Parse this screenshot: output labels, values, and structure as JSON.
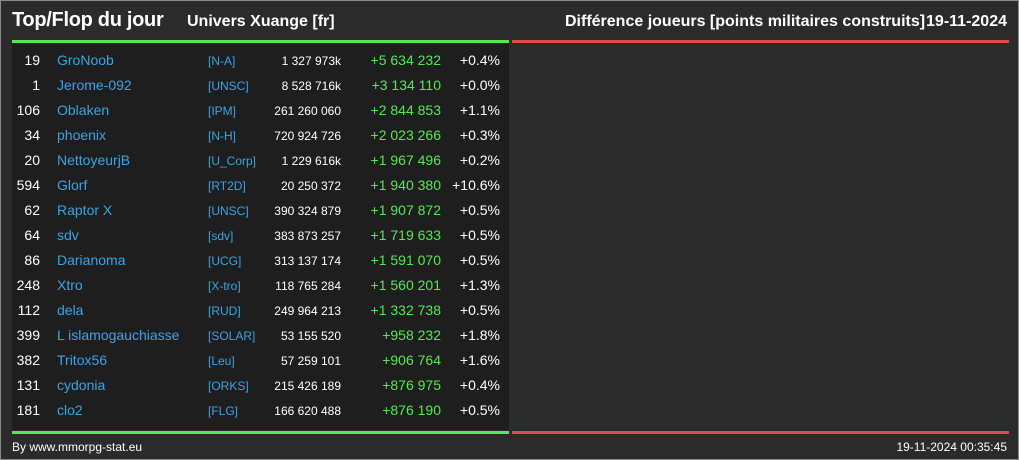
{
  "header": {
    "title": "Top/Flop du jour",
    "universe": "Univers Xuange [fr]",
    "metric": "Différence joueurs [points militaires construits]",
    "date": "19-11-2024"
  },
  "colors": {
    "background": "#2b2b2b",
    "panel": "#1e1e1e",
    "top_bar": "#55e855",
    "flop_bar": "#e04a44",
    "link": "#3aa5e6",
    "gain": "#55e855"
  },
  "top": [
    {
      "rank": "19",
      "name": "GroNoob",
      "alliance": "[N-A]",
      "points": "1 327 973k",
      "diff": "+5 634 232",
      "pct": "+0.4%"
    },
    {
      "rank": "1",
      "name": "Jerome-092",
      "alliance": "[UNSC]",
      "points": "8 528 716k",
      "diff": "+3 134 110",
      "pct": "+0.0%"
    },
    {
      "rank": "106",
      "name": "Oblaken",
      "alliance": "[IPM]",
      "points": "261 260 060",
      "diff": "+2 844 853",
      "pct": "+1.1%"
    },
    {
      "rank": "34",
      "name": "phoenix",
      "alliance": "[N-H]",
      "points": "720 924 726",
      "diff": "+2 023 266",
      "pct": "+0.3%"
    },
    {
      "rank": "20",
      "name": "NettoyeurjB",
      "alliance": "[U_Corp]",
      "points": "1 229 616k",
      "diff": "+1 967 496",
      "pct": "+0.2%"
    },
    {
      "rank": "594",
      "name": "Glorf",
      "alliance": "[RT2D]",
      "points": "20 250 372",
      "diff": "+1 940 380",
      "pct": "+10.6%"
    },
    {
      "rank": "62",
      "name": "Raptor X",
      "alliance": "[UNSC]",
      "points": "390 324 879",
      "diff": "+1 907 872",
      "pct": "+0.5%"
    },
    {
      "rank": "64",
      "name": "sdv",
      "alliance": "[sdv]",
      "points": "383 873 257",
      "diff": "+1 719 633",
      "pct": "+0.5%"
    },
    {
      "rank": "86",
      "name": "Darianoma",
      "alliance": "[UCG]",
      "points": "313 137 174",
      "diff": "+1 591 070",
      "pct": "+0.5%"
    },
    {
      "rank": "248",
      "name": "Xtro",
      "alliance": "[X-tro]",
      "points": "118 765 284",
      "diff": "+1 560 201",
      "pct": "+1.3%"
    },
    {
      "rank": "112",
      "name": "dela",
      "alliance": "[RUD]",
      "points": "249 964 213",
      "diff": "+1 332 738",
      "pct": "+0.5%"
    },
    {
      "rank": "399",
      "name": "L islamogauchiasse",
      "alliance": "[SOLAR]",
      "points": "53 155 520",
      "diff": "+958 232",
      "pct": "+1.8%"
    },
    {
      "rank": "382",
      "name": "Tritox56",
      "alliance": "[Leu]",
      "points": "57 259 101",
      "diff": "+906 764",
      "pct": "+1.6%"
    },
    {
      "rank": "131",
      "name": "cydonia",
      "alliance": "[ORKS]",
      "points": "215 426 189",
      "diff": "+876 975",
      "pct": "+0.4%"
    },
    {
      "rank": "181",
      "name": "clo2",
      "alliance": "[FLG]",
      "points": "166 620 488",
      "diff": "+876 190",
      "pct": "+0.5%"
    }
  ],
  "flop": [],
  "footer": {
    "credit": "By www.mmorpg-stat.eu",
    "timestamp": "19-11-2024 00:35:45"
  }
}
